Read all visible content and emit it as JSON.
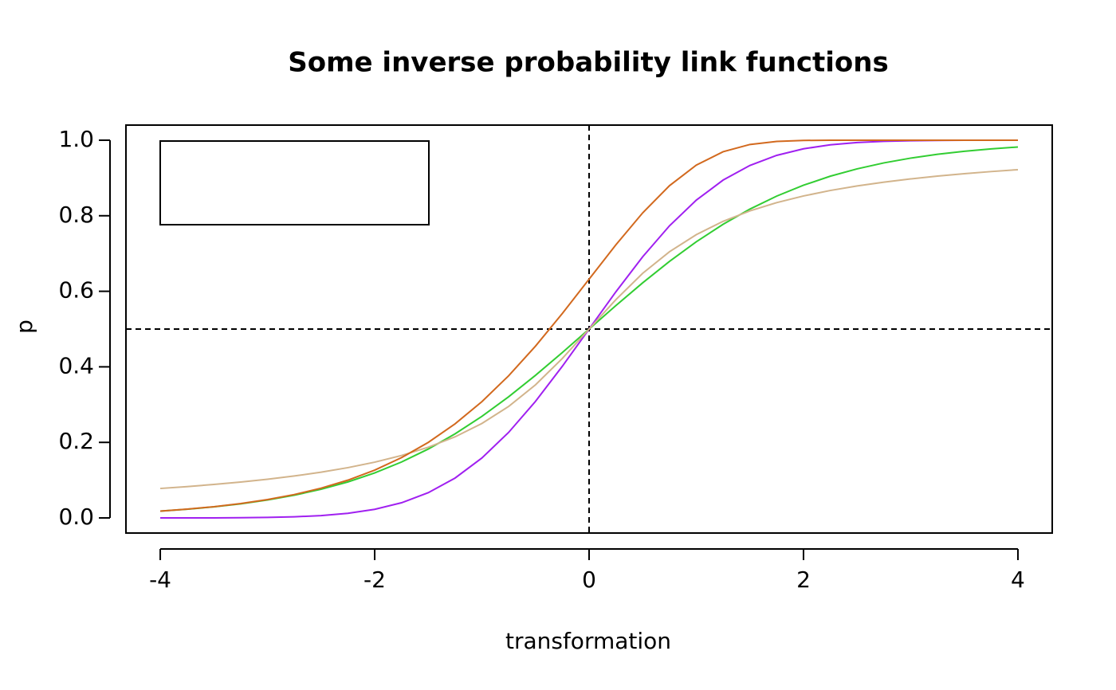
{
  "chart_data": {
    "type": "line",
    "title": "Some inverse probability link functions",
    "xlabel": "transformation",
    "ylabel": "p",
    "x": [
      -4,
      -3.75,
      -3.5,
      -3.25,
      -3,
      -2.75,
      -2.5,
      -2.25,
      -2,
      -1.75,
      -1.5,
      -1.25,
      -1,
      -0.75,
      -0.5,
      -0.25,
      0,
      0.25,
      0.5,
      0.75,
      1,
      1.25,
      1.5,
      1.75,
      2,
      2.25,
      2.5,
      2.75,
      3,
      3.25,
      3.5,
      3.75,
      4
    ],
    "series": [
      {
        "color": "#32cd32",
        "values": [
          0.018,
          0.023,
          0.0293,
          0.0373,
          0.0474,
          0.0601,
          0.0759,
          0.0953,
          0.1192,
          0.148,
          0.1824,
          0.2227,
          0.2689,
          0.3208,
          0.3775,
          0.4378,
          0.5,
          0.5622,
          0.6225,
          0.6792,
          0.7311,
          0.7773,
          0.8176,
          0.852,
          0.8808,
          0.9047,
          0.9241,
          0.9399,
          0.9526,
          0.9627,
          0.9707,
          0.977,
          0.982
        ]
      },
      {
        "color": "#a020f0",
        "values": [
          0.0,
          0.0001,
          0.0002,
          0.0006,
          0.0013,
          0.003,
          0.0062,
          0.0122,
          0.0228,
          0.0401,
          0.0668,
          0.1056,
          0.1587,
          0.2266,
          0.3085,
          0.4013,
          0.5,
          0.5987,
          0.6915,
          0.7734,
          0.8413,
          0.8944,
          0.9332,
          0.9599,
          0.9772,
          0.9878,
          0.9938,
          0.997,
          0.9987,
          0.9994,
          0.9998,
          0.9999,
          1.0
        ]
      },
      {
        "color": "#d2b48c",
        "values": [
          0.078,
          0.083,
          0.0886,
          0.095,
          0.1024,
          0.111,
          0.1211,
          0.1331,
          0.1476,
          0.1652,
          0.1872,
          0.2148,
          0.25,
          0.2952,
          0.3524,
          0.422,
          0.5,
          0.578,
          0.6476,
          0.7048,
          0.75,
          0.7852,
          0.8128,
          0.8348,
          0.8524,
          0.8669,
          0.8789,
          0.889,
          0.8976,
          0.905,
          0.9114,
          0.917,
          0.922
        ]
      },
      {
        "color": "#d2691e",
        "values": [
          0.0181,
          0.0232,
          0.0297,
          0.0381,
          0.0486,
          0.0619,
          0.0788,
          0.1,
          0.1266,
          0.1595,
          0.2,
          0.2491,
          0.3078,
          0.3765,
          0.4548,
          0.5411,
          0.6321,
          0.7231,
          0.8077,
          0.8796,
          0.934,
          0.9695,
          0.9887,
          0.9968,
          0.9994,
          0.9999,
          1.0,
          1.0,
          1.0,
          1.0,
          1.0,
          1.0,
          1.0
        ]
      }
    ],
    "xlim": [
      -4.32,
      4.32
    ],
    "ylim": [
      -0.04,
      1.04
    ],
    "xticks": [
      -4,
      -2,
      0,
      2,
      4
    ],
    "yticks": [
      {
        "value": 0,
        "label": "0.0"
      },
      {
        "value": 0.2,
        "label": "0.2"
      },
      {
        "value": 0.4,
        "label": "0.4"
      },
      {
        "value": 0.6,
        "label": "0.6"
      },
      {
        "value": 0.8,
        "label": "0.8"
      },
      {
        "value": 1,
        "label": "1.0"
      }
    ],
    "hline": 0.5,
    "vline": 0
  }
}
